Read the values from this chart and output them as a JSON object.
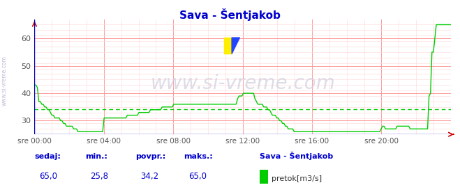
{
  "title": "Sava - Šentjakob",
  "title_color": "#0000cc",
  "bg_color": "#ffffff",
  "plot_bg_color": "#ffffff",
  "grid_color_major": "#ff9999",
  "grid_color_minor": "#ffdddd",
  "line_color": "#00cc00",
  "avg_line_color": "#00cc00",
  "avg_value": 34.2,
  "ylim_low": 25,
  "ylim_high": 67,
  "yticks": [
    30,
    40,
    50,
    60
  ],
  "xtick_labels": [
    "sre 00:00",
    "sre 04:00",
    "sre 08:00",
    "sre 12:00",
    "sre 16:00",
    "sre 20:00"
  ],
  "watermark": "www.si-vreme.com",
  "side_text": "www.si-vreme.com",
  "legend_label": "pretok[m3/s]",
  "legend_station": "Sava - Šentjakob",
  "footer_labels": [
    "sedaj:",
    "min.:",
    "povpr.:",
    "maks.:"
  ],
  "footer_values": [
    "65,0",
    "25,8",
    "34,2",
    "65,0"
  ],
  "footer_color": "#0000cc",
  "flow_data": [
    43,
    43,
    42,
    37,
    37,
    36,
    36,
    35,
    35,
    34,
    34,
    33,
    32,
    32,
    31,
    31,
    31,
    31,
    30,
    30,
    29,
    29,
    28,
    28,
    28,
    28,
    28,
    27,
    27,
    27,
    26,
    26,
    26,
    26,
    26,
    26,
    26,
    26,
    26,
    26,
    26,
    26,
    26,
    26,
    26,
    26,
    26,
    26,
    31,
    31,
    31,
    31,
    31,
    31,
    31,
    31,
    31,
    31,
    31,
    31,
    31,
    31,
    31,
    31,
    32,
    32,
    32,
    32,
    32,
    32,
    32,
    32,
    33,
    33,
    33,
    33,
    33,
    33,
    33,
    33,
    34,
    34,
    34,
    34,
    34,
    34,
    34,
    34,
    35,
    35,
    35,
    35,
    35,
    35,
    35,
    35,
    36,
    36,
    36,
    36,
    36,
    36,
    36,
    36,
    36,
    36,
    36,
    36,
    36,
    36,
    36,
    36,
    36,
    36,
    36,
    36,
    36,
    36,
    36,
    36,
    36,
    36,
    36,
    36,
    36,
    36,
    36,
    36,
    36,
    36,
    36,
    36,
    36,
    36,
    36,
    36,
    36,
    36,
    36,
    36,
    38,
    39,
    39,
    39,
    40,
    40,
    40,
    40,
    40,
    40,
    40,
    40,
    38,
    37,
    36,
    36,
    36,
    36,
    35,
    35,
    35,
    34,
    34,
    33,
    32,
    32,
    32,
    31,
    31,
    30,
    30,
    29,
    29,
    28,
    28,
    27,
    27,
    27,
    27,
    26,
    26,
    26,
    26,
    26,
    26,
    26,
    26,
    26,
    26,
    26,
    26,
    26,
    26,
    26,
    26,
    26,
    26,
    26,
    26,
    26,
    26,
    26,
    26,
    26,
    26,
    26,
    26,
    26,
    26,
    26,
    26,
    26,
    26,
    26,
    26,
    26,
    26,
    26,
    26,
    26,
    26,
    26,
    26,
    26,
    26,
    26,
    26,
    26,
    26,
    26,
    26,
    26,
    26,
    26,
    26,
    26,
    26,
    26,
    26,
    27,
    28,
    28,
    27,
    27,
    27,
    27,
    27,
    27,
    27,
    27,
    28,
    28,
    28,
    28,
    28,
    28,
    28,
    28,
    28,
    27,
    27,
    27,
    27,
    27,
    27,
    27,
    27,
    27,
    27,
    27,
    27,
    27,
    39,
    40,
    55,
    55,
    60,
    65,
    65,
    65,
    65,
    65,
    65,
    65,
    65,
    65,
    65,
    65
  ]
}
